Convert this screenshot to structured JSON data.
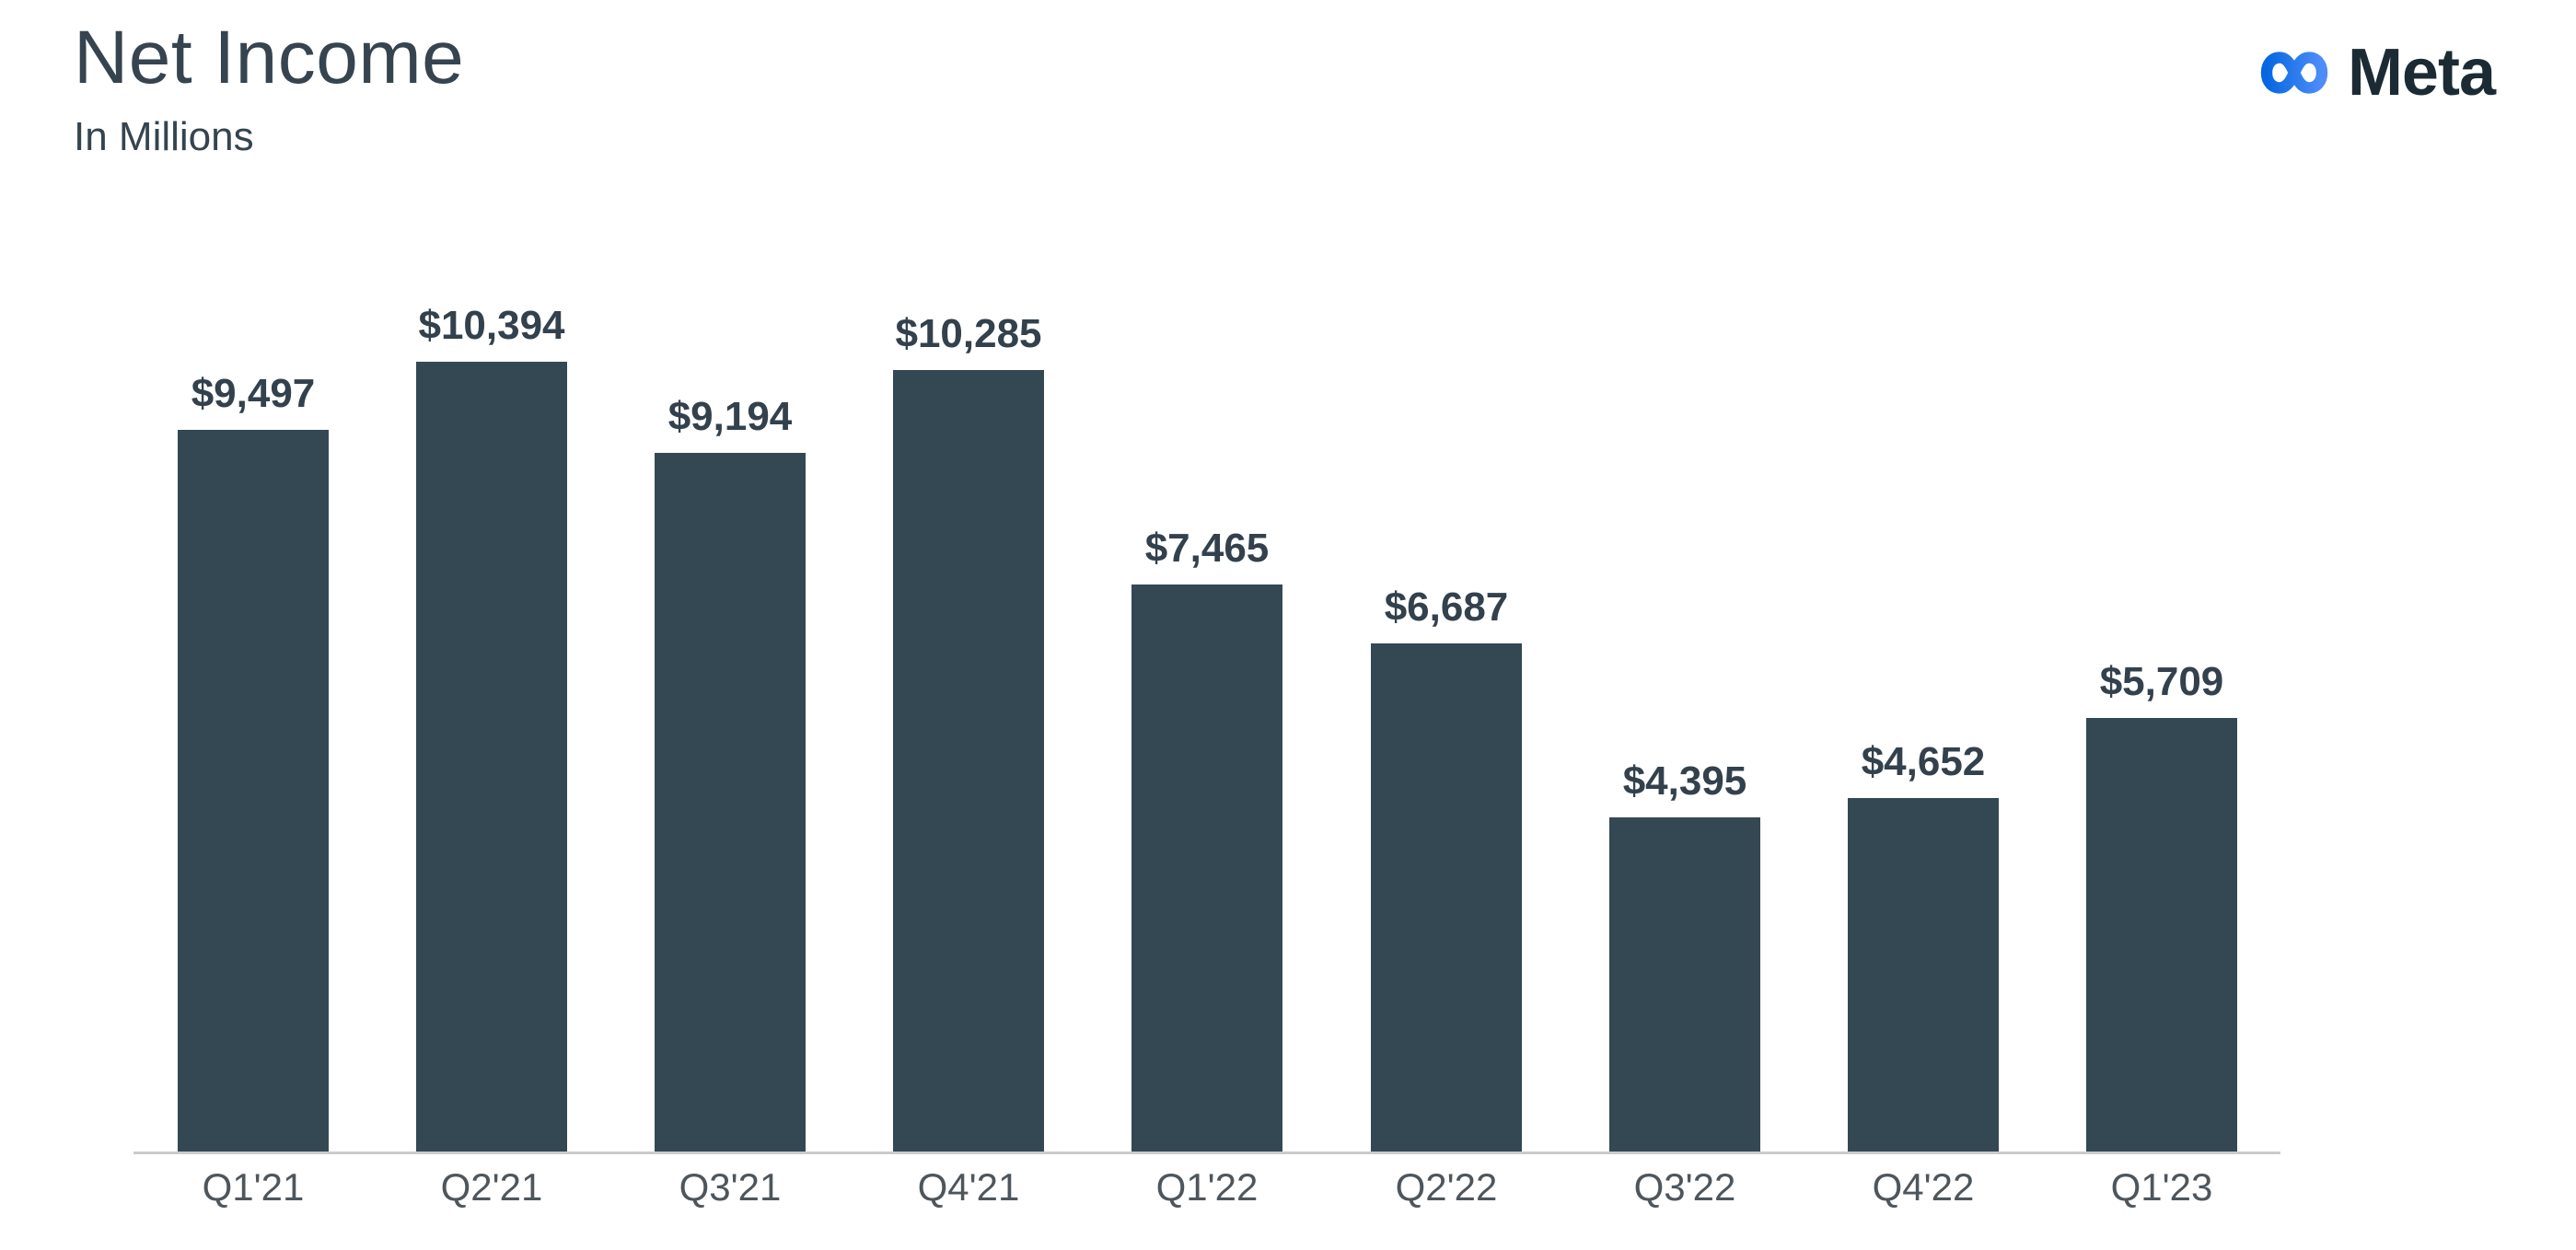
{
  "header": {
    "title": "Net Income",
    "subtitle": "In Millions"
  },
  "logo": {
    "wordmark": "Meta",
    "infinity_gradient_start": "#0667E0",
    "infinity_gradient_end": "#4E8DF9",
    "wordmark_color": "#1C2B33"
  },
  "colors": {
    "background": "#FFFFFF",
    "bar": "#344853",
    "title_text": "#35444E",
    "value_label_text": "#33414D",
    "axis_label_text": "#4E565C",
    "axis_line": "#C9CBCC"
  },
  "chart_data": {
    "type": "bar",
    "title": "Net Income",
    "subtitle": "In Millions",
    "categories": [
      "Q1'21",
      "Q2'21",
      "Q3'21",
      "Q4'21",
      "Q1'22",
      "Q2'22",
      "Q3'22",
      "Q4'22",
      "Q1'23"
    ],
    "values": [
      9497,
      10394,
      9194,
      10285,
      7465,
      6687,
      4395,
      4652,
      5709
    ],
    "value_labels": [
      "$9,497",
      "$10,394",
      "$9,194",
      "$10,285",
      "$7,465",
      "$6,687",
      "$4,395",
      "$4,652",
      "$5,709"
    ],
    "xlabel": "",
    "ylabel": "",
    "ylim": [
      0,
      10394
    ],
    "grid": false,
    "legend": false,
    "bar_color": "#344853",
    "data_labels_shown": true,
    "y_axis_shown": false
  }
}
